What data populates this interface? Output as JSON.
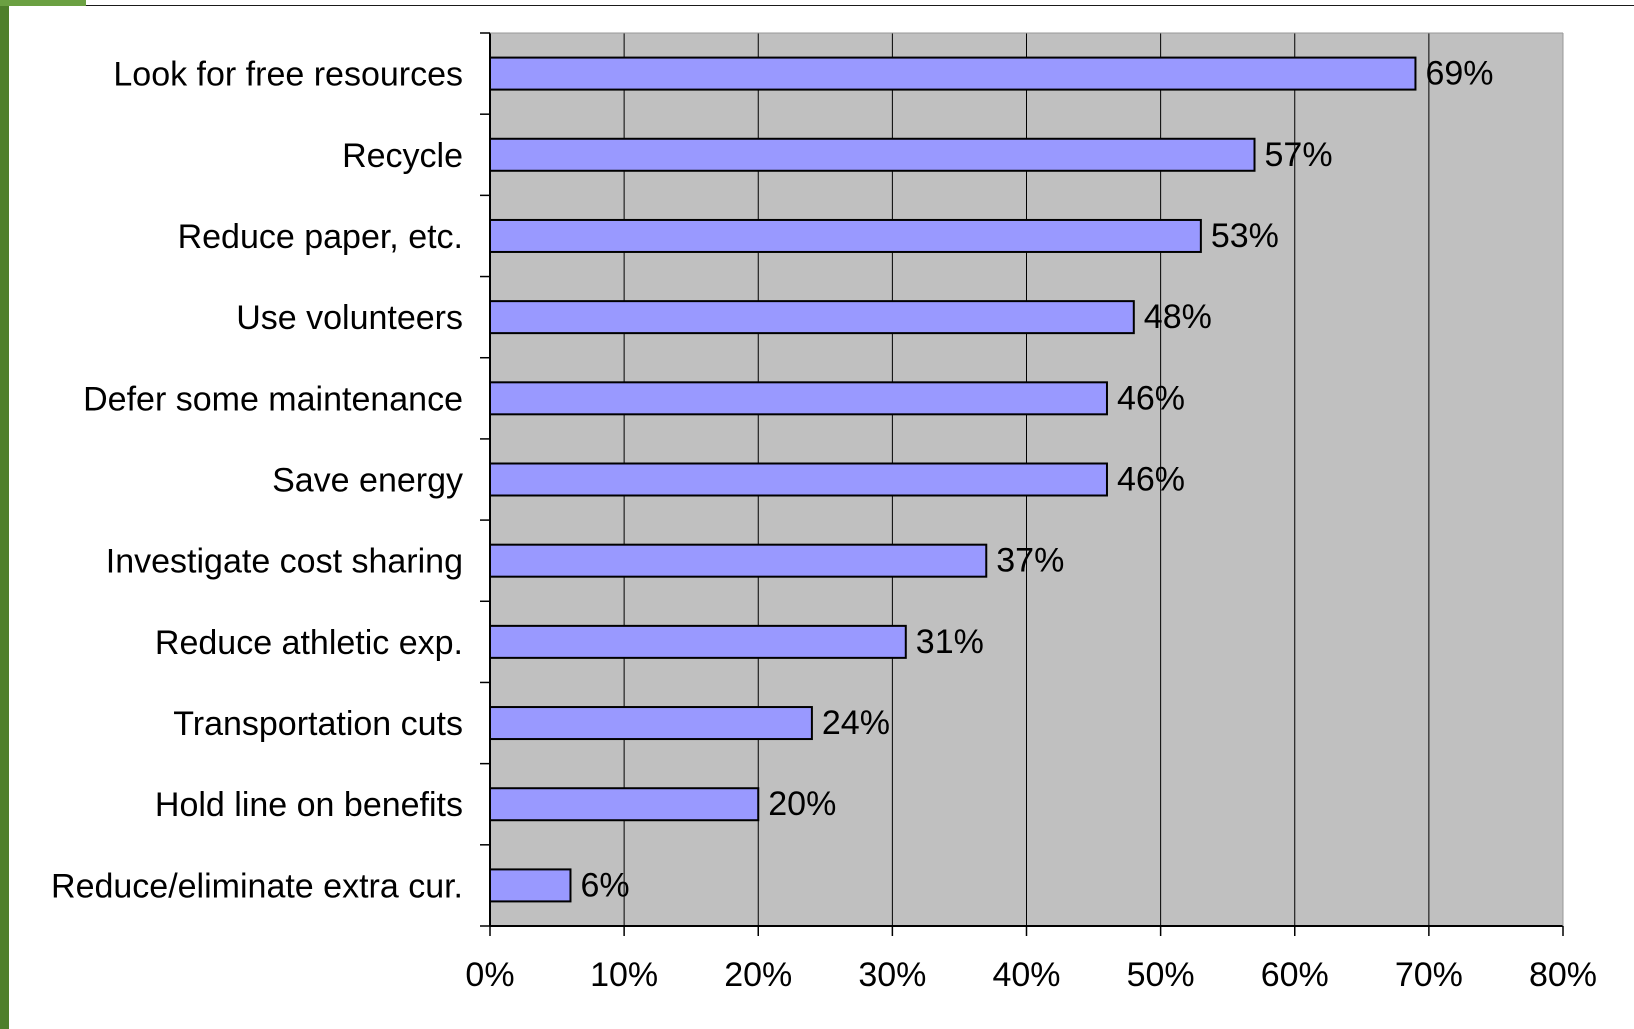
{
  "chart_data": {
    "type": "bar",
    "orientation": "horizontal",
    "categories": [
      "Look for free resources",
      "Recycle",
      "Reduce paper, etc.",
      "Use volunteers",
      "Defer some maintenance",
      "Save energy",
      "Investigate cost sharing",
      "Reduce athletic exp.",
      "Transportation cuts",
      "Hold line on benefits",
      "Reduce/eliminate extra cur."
    ],
    "values": [
      69,
      57,
      53,
      48,
      46,
      46,
      37,
      31,
      24,
      20,
      6
    ],
    "value_labels": [
      "69%",
      "57%",
      "53%",
      "48%",
      "46%",
      "46%",
      "37%",
      "31%",
      "24%",
      "20%",
      "6%"
    ],
    "xlim": [
      0,
      80
    ],
    "x_ticks": [
      0,
      10,
      20,
      30,
      40,
      50,
      60,
      70,
      80
    ],
    "x_tick_labels": [
      "0%",
      "10%",
      "20%",
      "30%",
      "40%",
      "50%",
      "60%",
      "70%",
      "80%"
    ],
    "grid": "vertical",
    "title": "",
    "xlabel": "",
    "ylabel": "",
    "colors": {
      "bar_fill": "#9999ff",
      "bar_stroke": "#000000",
      "plot_background": "#c0c0c0",
      "gridline": "#000000",
      "frame_accent": "#4e7f2b"
    }
  }
}
